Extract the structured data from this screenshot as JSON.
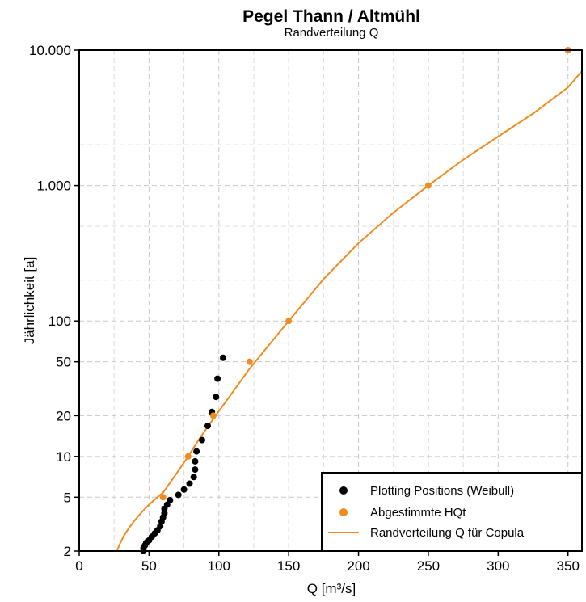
{
  "chart_data": {
    "type": "scatter",
    "title": "Pegel Thann / Altmühl",
    "subtitle": "Randverteilung Q",
    "xlabel": "Q [m³/s]",
    "ylabel": "Jährlichkeit [a]",
    "xlim": [
      0,
      360
    ],
    "ylim": [
      2,
      10000
    ],
    "y_scale": "log",
    "grid": true,
    "x_ticks": [
      0,
      50,
      100,
      150,
      200,
      250,
      300,
      350
    ],
    "x_tick_labels": [
      "0",
      "50",
      "100",
      "150",
      "200",
      "250",
      "300",
      "350"
    ],
    "y_ticks": [
      2,
      5,
      10,
      20,
      50,
      100,
      1000,
      10000
    ],
    "y_tick_labels": [
      "2",
      "5",
      "10",
      "20",
      "50",
      "100",
      "1.000",
      "10.000"
    ],
    "legend_position": "bottom-right",
    "colors": {
      "weibull": "#000000",
      "hqt": "#f08c1e",
      "curve": "#f08c1e"
    },
    "series": [
      {
        "name": "Plotting Positions (Weibull)",
        "kind": "points",
        "x": [
          46,
          46,
          47,
          48,
          50,
          52,
          54,
          56,
          58,
          59,
          60,
          61,
          61,
          63,
          65,
          71,
          75,
          79,
          82,
          83,
          83,
          84,
          88,
          92,
          95,
          98,
          99,
          103
        ],
        "y": [
          2,
          2.1,
          2.2,
          2.3,
          2.4,
          2.55,
          2.7,
          2.85,
          3.05,
          3.3,
          3.55,
          3.8,
          4.1,
          4.4,
          4.75,
          5.2,
          5.7,
          6.3,
          7.05,
          8.0,
          9.2,
          10.9,
          13.2,
          16.8,
          21.3,
          27.5,
          37.5,
          53.5
        ]
      },
      {
        "name": "Abgestimmte HQt",
        "kind": "points",
        "x": [
          60,
          78,
          96,
          122,
          150,
          250,
          350
        ],
        "y": [
          5,
          10,
          20,
          50,
          100,
          1000,
          10000
        ]
      },
      {
        "name": "Randverteilung Q für Copula",
        "kind": "line",
        "x": [
          27,
          29,
          32,
          36,
          40,
          45,
          50,
          55,
          60,
          66,
          72,
          78,
          85,
          92,
          100,
          110,
          122,
          135,
          150,
          175,
          200,
          225,
          250,
          275,
          300,
          325,
          350,
          360
        ],
        "y": [
          2,
          2.25,
          2.6,
          3.0,
          3.4,
          3.9,
          4.4,
          4.9,
          5.4,
          6.6,
          8.1,
          10,
          13,
          16.6,
          21.6,
          30,
          44.5,
          64.8,
          100,
          204,
          376,
          631,
          1000,
          1550,
          2300,
          3400,
          5300,
          7000
        ]
      }
    ]
  }
}
